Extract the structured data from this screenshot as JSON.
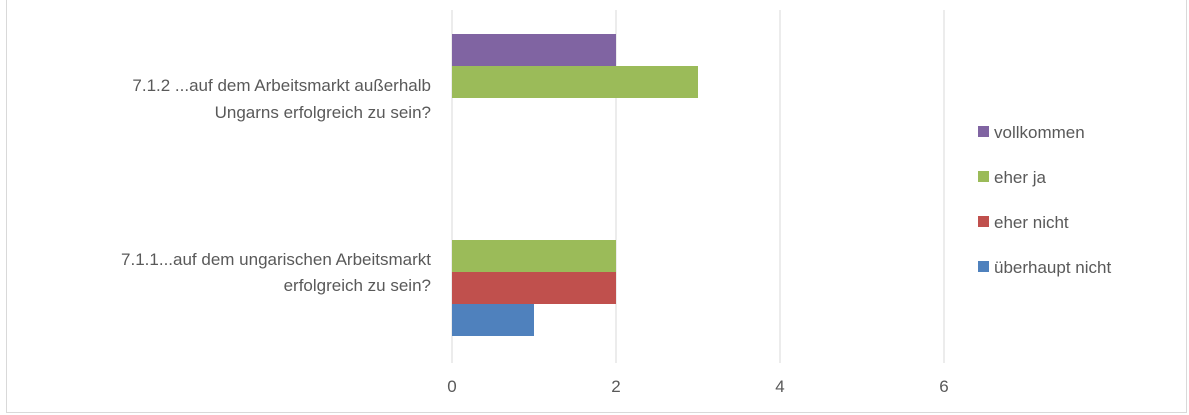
{
  "chart_data": {
    "type": "bar",
    "orientation": "horizontal",
    "categories": [
      "7.1.1...auf dem ungarischen Arbeitsmarkt erfolgreich zu sein?",
      "7.1.2 ...auf dem Arbeitsmarkt außerhalb Ungarns erfolgreich zu sein?"
    ],
    "category_lines": [
      [
        "7.1.1...auf dem ungarischen Arbeitsmarkt",
        "erfolgreich zu sein?"
      ],
      [
        "7.1.2 ...auf dem Arbeitsmarkt außerhalb",
        "Ungarns erfolgreich zu sein?"
      ]
    ],
    "series": [
      {
        "name": "überhaupt nicht",
        "color": "#4f81bd",
        "values": [
          1,
          null
        ]
      },
      {
        "name": "eher nicht",
        "color": "#c0504d",
        "values": [
          2,
          null
        ]
      },
      {
        "name": "eher ja",
        "color": "#9bbb59",
        "values": [
          2,
          3
        ]
      },
      {
        "name": "vollkommen",
        "color": "#8064a2",
        "values": [
          null,
          2
        ]
      }
    ],
    "xlim": [
      0,
      6
    ],
    "xticks": [
      0,
      2,
      4,
      6
    ],
    "grid": true,
    "legend": "right",
    "title": "",
    "xlabel": "",
    "ylabel": ""
  }
}
